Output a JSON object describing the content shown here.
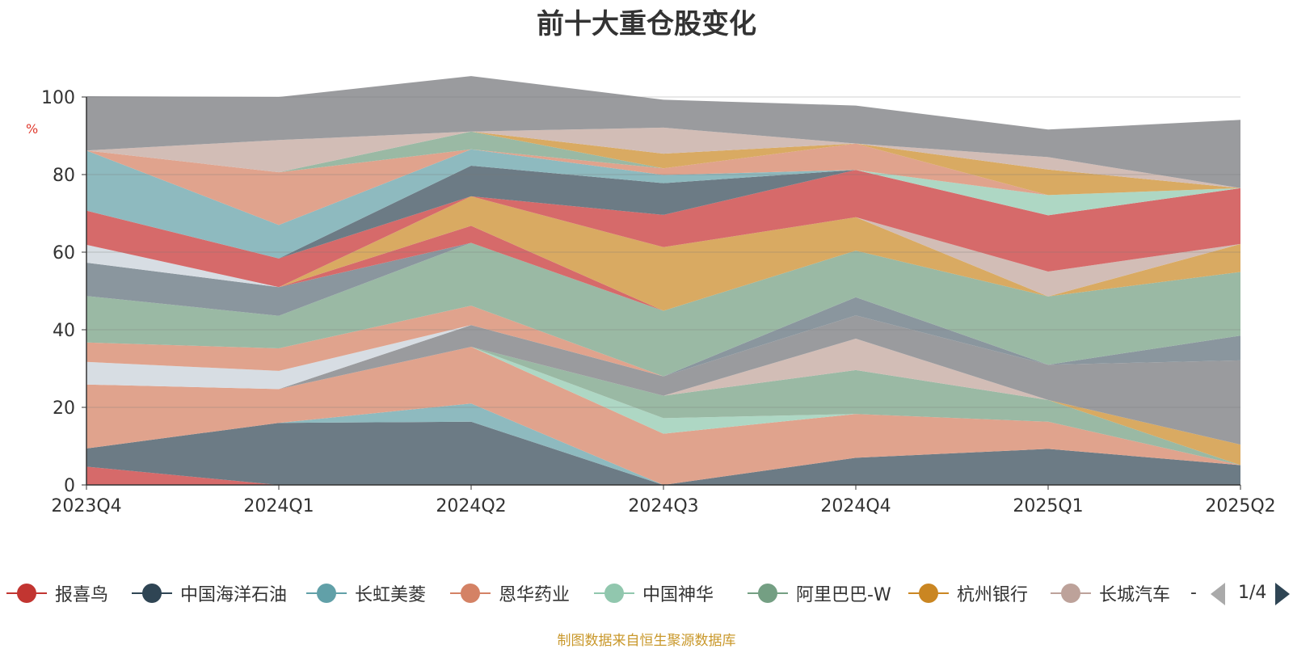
{
  "chart_data": {
    "type": "area",
    "title": "前十大重仓股变化",
    "unit_label": "%",
    "ylim": [
      0,
      100
    ],
    "yticks": [
      0,
      20,
      40,
      60,
      80,
      100
    ],
    "categories": [
      "2023Q4",
      "2024Q1",
      "2024Q2",
      "2024Q3",
      "2024Q4",
      "2025Q1",
      "2025Q2"
    ],
    "grid": true,
    "legend_position": "bottom",
    "series": [
      {
        "name": "报喜鸟",
        "legend_color": "#c23531",
        "fill": "#d66a6a",
        "values": [
          4.7,
          0,
          0,
          0,
          0,
          0,
          0
        ]
      },
      {
        "name": "中国海洋石油",
        "legend_color": "#2f4554",
        "fill": "#6c7b85",
        "values": [
          4.7,
          16,
          16.3,
          0,
          7,
          9.3,
          5.1
        ]
      },
      {
        "name": "长虹美菱",
        "legend_color": "#61a0a8",
        "fill": "#8ebabf",
        "values": [
          0,
          0,
          4.7,
          0,
          0,
          0,
          0
        ]
      },
      {
        "name": "恩华药业",
        "legend_color": "#d48265",
        "fill": "#e0a38d",
        "values": [
          16.5,
          8.7,
          14.6,
          13.2,
          11.3,
          7,
          0
        ]
      },
      {
        "name": "中国神华",
        "legend_color": "#91c7ae",
        "fill": "#aed7c4",
        "values": [
          0,
          0,
          0,
          4,
          0,
          0,
          0
        ]
      },
      {
        "name": "阿里巴巴-W",
        "legend_color": "#749f83",
        "fill": "#9ab9a4",
        "values": [
          0,
          0,
          0,
          5.8,
          11.3,
          5.6,
          0
        ]
      },
      {
        "name": "杭州银行",
        "legend_color": "#ca8622",
        "fill": "#d9aa62",
        "values": [
          0,
          0,
          0,
          0,
          0,
          0,
          5.3
        ]
      },
      {
        "name": "长城汽车",
        "legend_color": "#bda29a",
        "fill": "#d2bdb6",
        "values": [
          0,
          0,
          0,
          0,
          8.1,
          0,
          0
        ]
      },
      {
        "name": "",
        "legend_color": "#6e7074",
        "fill": "#9a9b9e",
        "values": [
          0,
          0,
          5.6,
          5,
          6,
          9.1,
          21.7
        ]
      },
      {
        "name": "",
        "legend_color": "#546570",
        "fill": "#8a969e",
        "values": [
          0,
          0,
          0,
          0,
          4.7,
          0,
          6.4
        ]
      },
      {
        "name": "",
        "legend_color": "#c4ccd3",
        "fill": "#d7dde3",
        "values": [
          5.8,
          4.7,
          0,
          0,
          0,
          0,
          0
        ]
      },
      {
        "name": "",
        "legend_color": "#d48265",
        "fill": "#e0a38d",
        "values": [
          5,
          5.8,
          5,
          0,
          0,
          0,
          0
        ]
      },
      {
        "name": "",
        "legend_color": "#749f83",
        "fill": "#9ab9a4",
        "values": [
          12,
          8.4,
          16.2,
          16.9,
          12,
          17.6,
          16.4
        ]
      },
      {
        "name": "",
        "legend_color": "#546570",
        "fill": "#8a969e",
        "values": [
          8.6,
          7.4,
          0,
          0,
          0,
          0,
          0
        ]
      },
      {
        "name": "",
        "legend_color": "#c23531",
        "fill": "#d66a6a",
        "values": [
          0,
          0,
          4.4,
          0,
          0,
          0,
          0
        ]
      },
      {
        "name": "",
        "legend_color": "#c4ccd3",
        "fill": "#d7dde3",
        "values": [
          4.6,
          0,
          0,
          0,
          0,
          0,
          0
        ]
      },
      {
        "name": "",
        "legend_color": "#ca8622",
        "fill": "#d9aa62",
        "values": [
          0,
          0,
          7.6,
          16.4,
          8.6,
          0,
          7.2
        ]
      },
      {
        "name": "",
        "legend_color": "#bda29a",
        "fill": "#d2bdb6",
        "values": [
          0,
          0,
          0,
          0,
          0,
          6.4,
          0
        ]
      },
      {
        "name": "",
        "legend_color": "#c23531",
        "fill": "#d66a6a",
        "values": [
          8.8,
          7.4,
          0,
          8.3,
          12.2,
          14.5,
          14.4
        ]
      },
      {
        "name": "",
        "legend_color": "#2f4554",
        "fill": "#6c7b85",
        "values": [
          0,
          0,
          7.9,
          8.2,
          0,
          0,
          0
        ]
      },
      {
        "name": "",
        "legend_color": "#61a0a8",
        "fill": "#8ebabf",
        "values": [
          15.5,
          8.6,
          4.2,
          2.1,
          0,
          0,
          0
        ]
      },
      {
        "name": "",
        "legend_color": "#91c7ae",
        "fill": "#aed7c4",
        "values": [
          0,
          0,
          0,
          0,
          0,
          5.2,
          0
        ]
      },
      {
        "name": "",
        "legend_color": "#d48265",
        "fill": "#e0a38d",
        "values": [
          0,
          13.6,
          0,
          1.7,
          6.8,
          0,
          0
        ]
      },
      {
        "name": "",
        "legend_color": "#749f83",
        "fill": "#9ab9a4",
        "values": [
          0,
          0,
          4.6,
          0,
          0,
          0,
          0
        ]
      },
      {
        "name": "",
        "legend_color": "#ca8622",
        "fill": "#d9aa62",
        "values": [
          0,
          0,
          0,
          3.8,
          0,
          6.6,
          0
        ]
      },
      {
        "name": "",
        "legend_color": "#bda29a",
        "fill": "#d2bdb6",
        "values": [
          0,
          8.3,
          0,
          6.7,
          0,
          3.2,
          0
        ]
      },
      {
        "name": "",
        "legend_color": "#6e7074",
        "fill": "#9a9b9e",
        "values": [
          14,
          11.1,
          14.3,
          7.2,
          9.8,
          7.1,
          17.6
        ]
      }
    ]
  },
  "legend": {
    "items": [
      {
        "label": "报喜鸟",
        "color": "#c23531"
      },
      {
        "label": "中国海洋石油",
        "color": "#2f4554"
      },
      {
        "label": "长虹美菱",
        "color": "#61a0a8"
      },
      {
        "label": "恩华药业",
        "color": "#d48265"
      },
      {
        "label": "中国神华",
        "color": "#91c7ae"
      },
      {
        "label": "阿里巴巴-W",
        "color": "#749f83"
      },
      {
        "label": "杭州银行",
        "color": "#ca8622"
      },
      {
        "label": "长城汽车",
        "color": "#bda29a"
      }
    ],
    "ellipsis": "-",
    "page_indicator": "1/4"
  },
  "source_note": "制图数据来自恒生聚源数据库"
}
